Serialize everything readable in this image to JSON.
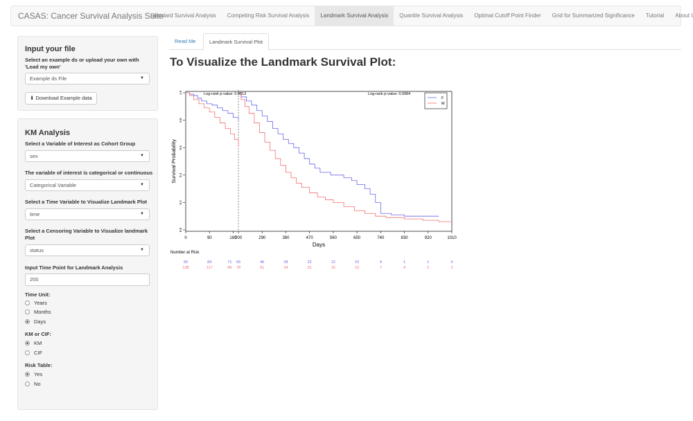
{
  "navbar": {
    "brand": "CASAS: Cancer Survival Analysis Suite",
    "items": [
      {
        "label": "Standard Survival Analysis"
      },
      {
        "label": "Competing Risk Survival Analysis"
      },
      {
        "label": "Landmark Survival Analysis",
        "active": true
      },
      {
        "label": "Quantile Survival Analysis"
      },
      {
        "label": "Optimal Cutoff Point Finder"
      },
      {
        "label": "Grid for Summarized Significance"
      },
      {
        "label": "Tutorial"
      },
      {
        "label": "About Us"
      }
    ]
  },
  "input_panel": {
    "title": "Input your file",
    "select_label": "Select an example ds or upload your own with 'Load my own'",
    "select_value": "Example ds File",
    "download_button": "Download Example data"
  },
  "km_panel": {
    "title": "KM Analysis",
    "cohort_label": "Select a Variable of Interest as Cohort Group",
    "cohort_value": "sex",
    "type_label": "The variable of interest is categorical or continuous",
    "type_value": "Categorical Variable",
    "time_label": "Select a Time Variable to Visualize Landmark Plot",
    "time_value": "time",
    "censor_label": "Select a Censoring Variable to Visualize landmark Plot",
    "censor_value": "status",
    "landmark_label": "Input Time Point for Landmark Analysis",
    "landmark_value": "200",
    "time_unit": {
      "label": "Time Unit:",
      "options": [
        "Years",
        "Months",
        "Days"
      ],
      "selected": "Days"
    },
    "km_cif": {
      "label": "KM or CIF:",
      "options": [
        "KM",
        "CIF"
      ],
      "selected": "KM"
    },
    "risk_table": {
      "label": "Risk Table:",
      "options": [
        "Yes",
        "No"
      ],
      "selected": "Yes"
    }
  },
  "tabs": [
    {
      "label": "Read Me",
      "active": false
    },
    {
      "label": "Landmark Survival Plot",
      "active": true
    }
  ],
  "main": {
    "title": "To Visualize the Landmark Survival Plot:"
  },
  "chart_data": {
    "type": "line",
    "xlabel": "Days",
    "ylabel": "Survival Probability",
    "xlim": [
      0,
      1010
    ],
    "ylim": [
      0,
      1
    ],
    "x_ticks": [
      0,
      90,
      180,
      200,
      290,
      380,
      470,
      560,
      650,
      740,
      830,
      920,
      1010
    ],
    "y_ticks": [
      "0.0",
      "0.2",
      "0.4",
      "0.6",
      "0.8",
      "1.0"
    ],
    "landmark": 200,
    "pvalues": [
      "Log-rank p-value: 0.0013",
      "Log-rank p-value: 0.0984"
    ],
    "legend": {
      "position": "top-right",
      "entries": [
        "F",
        "M"
      ]
    },
    "colors": {
      "F": "#6666ee",
      "M": "#f07070"
    },
    "series": [
      {
        "name": "F",
        "pre": [
          [
            0,
            1.0
          ],
          [
            15,
            0.99
          ],
          [
            30,
            0.98
          ],
          [
            45,
            0.96
          ],
          [
            60,
            0.94
          ],
          [
            80,
            0.92
          ],
          [
            100,
            0.91
          ],
          [
            120,
            0.89
          ],
          [
            140,
            0.87
          ],
          [
            160,
            0.85
          ],
          [
            180,
            0.82
          ],
          [
            200,
            0.8
          ]
        ],
        "post": [
          [
            200,
            1.0
          ],
          [
            210,
            0.97
          ],
          [
            230,
            0.94
          ],
          [
            250,
            0.91
          ],
          [
            270,
            0.87
          ],
          [
            290,
            0.83
          ],
          [
            310,
            0.79
          ],
          [
            330,
            0.74
          ],
          [
            350,
            0.7
          ],
          [
            370,
            0.66
          ],
          [
            390,
            0.63
          ],
          [
            410,
            0.6
          ],
          [
            430,
            0.56
          ],
          [
            450,
            0.52
          ],
          [
            470,
            0.48
          ],
          [
            490,
            0.45
          ],
          [
            510,
            0.42
          ],
          [
            550,
            0.4
          ],
          [
            600,
            0.38
          ],
          [
            630,
            0.36
          ],
          [
            650,
            0.33
          ],
          [
            680,
            0.3
          ],
          [
            700,
            0.26
          ],
          [
            720,
            0.2
          ],
          [
            740,
            0.12
          ],
          [
            780,
            0.11
          ],
          [
            830,
            0.1
          ],
          [
            900,
            0.1
          ],
          [
            960,
            0.1
          ]
        ]
      },
      {
        "name": "M",
        "pre": [
          [
            0,
            1.0
          ],
          [
            15,
            0.98
          ],
          [
            30,
            0.95
          ],
          [
            50,
            0.92
          ],
          [
            70,
            0.89
          ],
          [
            90,
            0.86
          ],
          [
            110,
            0.82
          ],
          [
            130,
            0.78
          ],
          [
            150,
            0.74
          ],
          [
            170,
            0.7
          ],
          [
            185,
            0.66
          ],
          [
            200,
            0.61
          ]
        ],
        "post": [
          [
            200,
            1.0
          ],
          [
            210,
            0.95
          ],
          [
            225,
            0.9
          ],
          [
            240,
            0.85
          ],
          [
            260,
            0.78
          ],
          [
            280,
            0.71
          ],
          [
            300,
            0.64
          ],
          [
            320,
            0.58
          ],
          [
            340,
            0.52
          ],
          [
            360,
            0.47
          ],
          [
            380,
            0.42
          ],
          [
            400,
            0.38
          ],
          [
            420,
            0.34
          ],
          [
            440,
            0.31
          ],
          [
            470,
            0.27
          ],
          [
            500,
            0.24
          ],
          [
            530,
            0.22
          ],
          [
            560,
            0.2
          ],
          [
            600,
            0.17
          ],
          [
            640,
            0.14
          ],
          [
            680,
            0.12
          ],
          [
            720,
            0.1
          ],
          [
            760,
            0.09
          ],
          [
            830,
            0.08
          ],
          [
            900,
            0.07
          ],
          [
            960,
            0.06
          ],
          [
            1010,
            0.06
          ]
        ]
      }
    ],
    "risk_table": {
      "title": "Number at Risk",
      "times": [
        0,
        90,
        180,
        200,
        290,
        380,
        470,
        560,
        650,
        740,
        830,
        920,
        1010
      ],
      "F": [
        90,
        84,
        71,
        65,
        46,
        28,
        22,
        12,
        10,
        4,
        1,
        1,
        0
      ],
      "M": [
        138,
        117,
        89,
        78,
        51,
        34,
        21,
        16,
        10,
        7,
        4,
        2,
        2
      ]
    }
  }
}
